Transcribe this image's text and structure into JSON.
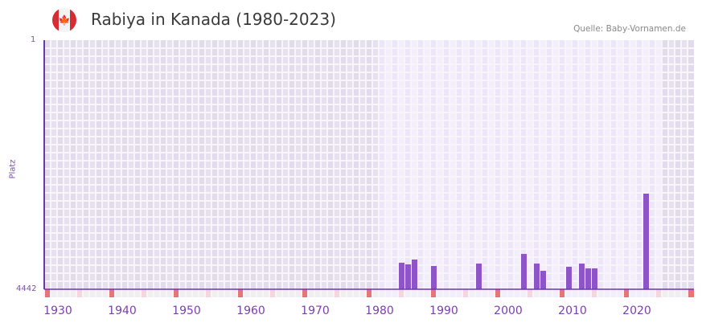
{
  "header": {
    "title": "Rabiya in Kanada (1980-2023)",
    "source": "Quelle: Baby-Vornamen.de",
    "flag_icon": "canada-flag-icon"
  },
  "chart_data": {
    "type": "bar",
    "title": "Rabiya in Kanada (1980-2023)",
    "ylabel": "Platz",
    "xlabel": "",
    "ylim": [
      4442,
      1
    ],
    "xlim": [
      1928,
      2028
    ],
    "highlight_range": [
      1980,
      2023
    ],
    "y_ticks": [
      "1",
      "4442"
    ],
    "x_ticks": [
      1930,
      1940,
      1950,
      1960,
      1970,
      1980,
      1990,
      2000,
      2010,
      2020
    ],
    "x": [
      1983,
      1984,
      1985,
      1988,
      1995,
      2002,
      2004,
      2005,
      2009,
      2011,
      2012,
      2013,
      2021
    ],
    "values": [
      3969,
      3998,
      3912,
      4027,
      3984,
      3812,
      3984,
      4113,
      4041,
      3984,
      4070,
      4070,
      2737
    ],
    "bar_color": "#8e55c8",
    "grid": true
  }
}
